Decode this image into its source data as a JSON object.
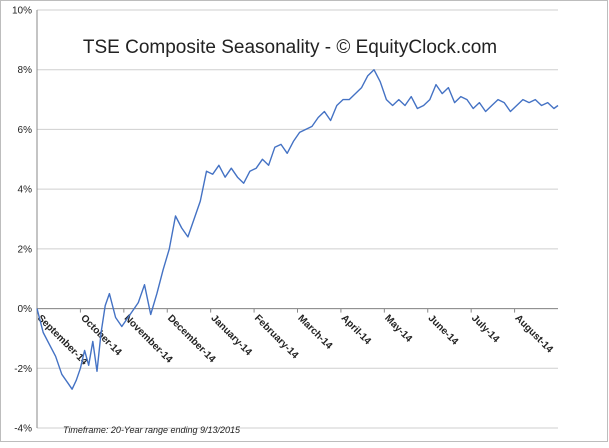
{
  "chart_data": {
    "type": "line",
    "title": "TSE Composite Seasonality - © EquityClock.com",
    "footnote": "Timeframe: 20-Year range ending 9/13/2015",
    "xlabel": "",
    "ylabel": "",
    "ylim": [
      -4,
      10
    ],
    "grid": true,
    "legend": "none",
    "y_ticks": [
      "-4%",
      "-2%",
      "0%",
      "2%",
      "4%",
      "6%",
      "8%",
      "10%"
    ],
    "y_tick_values": [
      -4,
      -2,
      0,
      2,
      4,
      6,
      8,
      10
    ],
    "x_ticks": [
      "September-14",
      "October-14",
      "November-14",
      "December-14",
      "January-14",
      "February-14",
      "March-14",
      "April-14",
      "May-14",
      "June-14",
      "July-14",
      "August-14"
    ],
    "x_tick_positions": [
      0,
      21,
      42,
      63,
      84,
      105,
      126,
      147,
      168,
      189,
      210,
      231
    ],
    "x_range": [
      0,
      252
    ],
    "line_color": "#4472c4",
    "series": [
      {
        "x": [
          0,
          3,
          6,
          9,
          12,
          15,
          17,
          19,
          21,
          23,
          25,
          27,
          29,
          31,
          33,
          35,
          38,
          41,
          43,
          46,
          49,
          52,
          55,
          58,
          61,
          64,
          67,
          70,
          73,
          76,
          79,
          82,
          85,
          88,
          91,
          94,
          97,
          100,
          103,
          106,
          109,
          112,
          115,
          118,
          121,
          124,
          127,
          130,
          133,
          136,
          139,
          142,
          145,
          148,
          151,
          154,
          157,
          160,
          163,
          166,
          169,
          172,
          175,
          178,
          181,
          184,
          187,
          190,
          193,
          196,
          199,
          202,
          205,
          208,
          211,
          214,
          217,
          220,
          223,
          226,
          229,
          232,
          235,
          238,
          241,
          244,
          247,
          250,
          252
        ],
        "values": [
          0,
          -0.8,
          -1.2,
          -1.6,
          -2.2,
          -2.5,
          -2.7,
          -2.4,
          -2.0,
          -1.4,
          -1.9,
          -1.1,
          -2.1,
          -0.8,
          0.1,
          0.5,
          -0.3,
          -0.6,
          -0.4,
          -0.1,
          0.2,
          0.8,
          -0.2,
          0.5,
          1.3,
          2.0,
          3.1,
          2.7,
          2.4,
          3.0,
          3.6,
          4.6,
          4.5,
          4.8,
          4.4,
          4.7,
          4.4,
          4.2,
          4.6,
          4.7,
          5.0,
          4.8,
          5.4,
          5.5,
          5.2,
          5.6,
          5.9,
          6.0,
          6.1,
          6.4,
          6.6,
          6.3,
          6.8,
          7.0,
          7.0,
          7.2,
          7.4,
          7.8,
          8.0,
          7.6,
          7.0,
          6.8,
          7.0,
          6.8,
          7.1,
          6.7,
          6.8,
          7.0,
          7.5,
          7.2,
          7.4,
          6.9,
          7.1,
          7.0,
          6.7,
          6.9,
          6.6,
          6.8,
          7.0,
          6.9,
          6.6,
          6.8,
          7.0,
          6.9,
          7.0,
          6.8,
          6.9,
          6.7,
          6.8
        ]
      }
    ]
  }
}
